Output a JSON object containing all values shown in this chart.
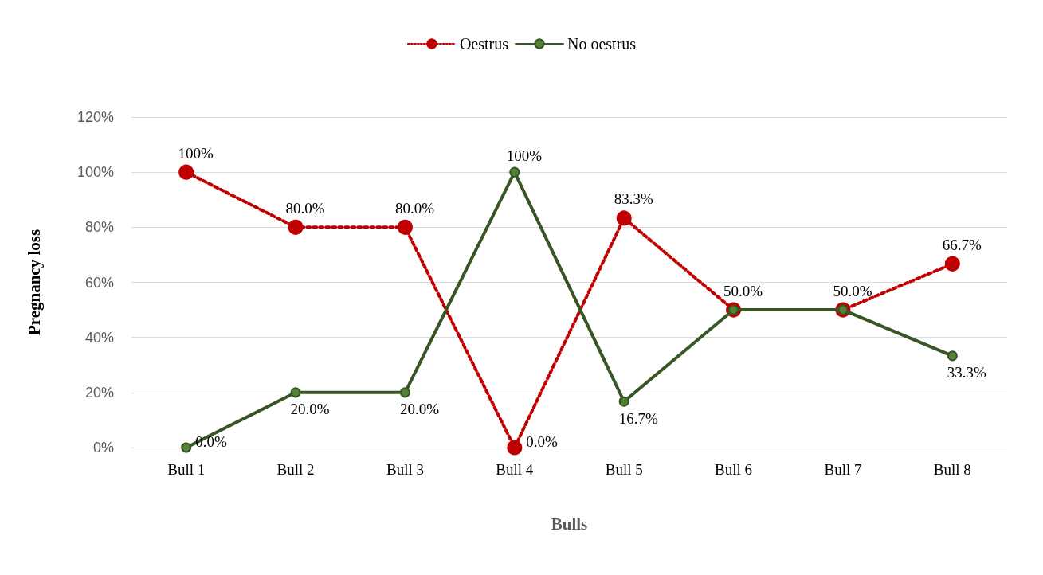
{
  "chart_data": {
    "type": "line",
    "xlabel": "Bulls",
    "ylabel": "Pregnancy loss",
    "categories": [
      "Bull 1",
      "Bull 2",
      "Bull 3",
      "Bull 4",
      "Bull 5",
      "Bull 6",
      "Bull 7",
      "Bull 8"
    ],
    "series": [
      {
        "name": "Oestrus",
        "color": "#c00000",
        "line_style": "dotted",
        "values": [
          100,
          80,
          80,
          0,
          83.3,
          50,
          50,
          66.7
        ],
        "value_labels": [
          "100%",
          "80.0%",
          "80.0%",
          "0.0%",
          "83.3%",
          "50.0%",
          "50.0%",
          "66.7%"
        ]
      },
      {
        "name": "No oestrus",
        "color": "#375623",
        "line_style": "solid",
        "values": [
          0,
          20,
          20,
          100,
          16.7,
          50,
          50,
          33.3
        ],
        "value_labels": [
          "0.0%",
          "20.0%",
          "20.0%",
          "100%",
          "16.7%",
          null,
          null,
          "33.3%"
        ]
      }
    ],
    "ylim": [
      0,
      120
    ],
    "yticks": [
      {
        "value": 0,
        "label": "0%"
      },
      {
        "value": 20,
        "label": "20%"
      },
      {
        "value": 40,
        "label": "40%"
      },
      {
        "value": 60,
        "label": "60%"
      },
      {
        "value": 80,
        "label": "80%"
      },
      {
        "value": 100,
        "label": "100%"
      },
      {
        "value": 120,
        "label": "120%"
      }
    ],
    "grid": "y",
    "legend": "top",
    "marker": "circle"
  }
}
